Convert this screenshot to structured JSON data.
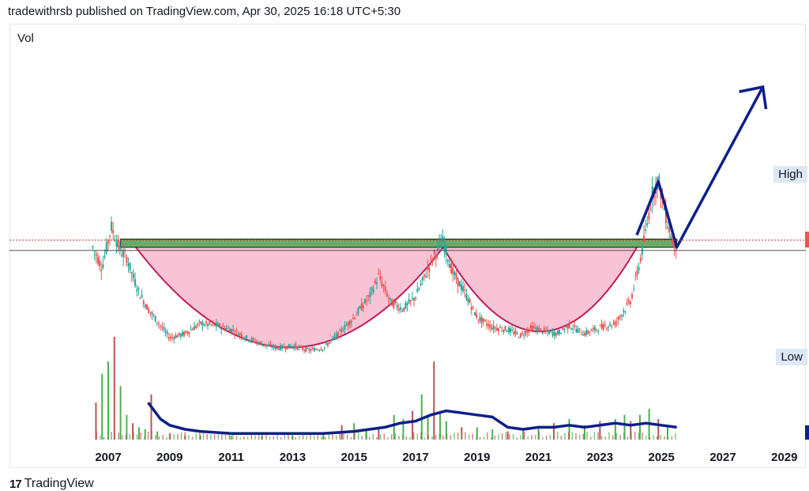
{
  "header": {
    "title": "tradewithrsb published on TradingView.com, Apr 30, 2025 16:18 UTC+5:30"
  },
  "footer": {
    "brand": "TradingView",
    "logo_icon": "tradingview-logo-icon"
  },
  "chart_data": {
    "type": "candlestick",
    "pane_label": "Vol",
    "x_ticks": [
      "2007",
      "2009",
      "2011",
      "2013",
      "2015",
      "2017",
      "2019",
      "2021",
      "2023",
      "2025",
      "2027",
      "2029"
    ],
    "markers": [
      {
        "label": "High",
        "placement": "right"
      },
      {
        "label": "Low",
        "placement": "right"
      }
    ],
    "price_path": [
      [
        2006.5,
        52
      ],
      [
        2006.8,
        42
      ],
      [
        2007.1,
        62
      ],
      [
        2007.4,
        50
      ],
      [
        2007.6,
        47
      ],
      [
        2007.8,
        38
      ],
      [
        2008.0,
        30
      ],
      [
        2008.3,
        22
      ],
      [
        2008.7,
        14
      ],
      [
        2009.0,
        8
      ],
      [
        2009.5,
        10
      ],
      [
        2010.0,
        15
      ],
      [
        2010.5,
        14
      ],
      [
        2011.0,
        12
      ],
      [
        2011.5,
        8
      ],
      [
        2012.0,
        5
      ],
      [
        2012.5,
        3
      ],
      [
        2013.0,
        4
      ],
      [
        2013.5,
        2
      ],
      [
        2014.0,
        3
      ],
      [
        2014.5,
        10
      ],
      [
        2015.0,
        18
      ],
      [
        2015.5,
        28
      ],
      [
        2015.8,
        38
      ],
      [
        2016.2,
        25
      ],
      [
        2016.6,
        22
      ],
      [
        2017.0,
        28
      ],
      [
        2017.3,
        38
      ],
      [
        2017.6,
        48
      ],
      [
        2017.9,
        55
      ],
      [
        2018.2,
        40
      ],
      [
        2018.6,
        30
      ],
      [
        2019.0,
        18
      ],
      [
        2019.5,
        13
      ],
      [
        2020.0,
        12
      ],
      [
        2020.4,
        9
      ],
      [
        2020.8,
        13
      ],
      [
        2021.2,
        11
      ],
      [
        2021.6,
        10
      ],
      [
        2022.0,
        14
      ],
      [
        2022.5,
        10
      ],
      [
        2023.0,
        13
      ],
      [
        2023.5,
        15
      ],
      [
        2024.0,
        26
      ],
      [
        2024.3,
        45
      ],
      [
        2024.5,
        60
      ],
      [
        2024.7,
        78
      ],
      [
        2024.9,
        85
      ],
      [
        2025.1,
        70
      ],
      [
        2025.3,
        58
      ],
      [
        2025.5,
        52
      ]
    ],
    "volume_bars": [
      [
        2006.6,
        18
      ],
      [
        2006.8,
        32
      ],
      [
        2007.0,
        38
      ],
      [
        2007.2,
        50
      ],
      [
        2007.4,
        26
      ],
      [
        2007.6,
        12
      ],
      [
        2007.8,
        8
      ],
      [
        2008.0,
        6
      ],
      [
        2008.2,
        5
      ],
      [
        2008.4,
        22
      ],
      [
        2008.6,
        4
      ],
      [
        2009.0,
        3
      ],
      [
        2009.5,
        2
      ],
      [
        2010.0,
        2
      ],
      [
        2011.0,
        2
      ],
      [
        2012.0,
        2
      ],
      [
        2013.0,
        2
      ],
      [
        2014.0,
        3
      ],
      [
        2014.6,
        7
      ],
      [
        2015.0,
        8
      ],
      [
        2015.4,
        5
      ],
      [
        2015.8,
        6
      ],
      [
        2016.3,
        12
      ],
      [
        2016.6,
        10
      ],
      [
        2016.9,
        14
      ],
      [
        2017.2,
        22
      ],
      [
        2017.4,
        12
      ],
      [
        2017.6,
        38
      ],
      [
        2017.8,
        14
      ],
      [
        2018.0,
        9
      ],
      [
        2018.5,
        6
      ],
      [
        2019.0,
        6
      ],
      [
        2019.5,
        5
      ],
      [
        2020.0,
        4
      ],
      [
        2020.5,
        5
      ],
      [
        2021.0,
        6
      ],
      [
        2021.5,
        8
      ],
      [
        2022.0,
        10
      ],
      [
        2022.5,
        7
      ],
      [
        2023.0,
        9
      ],
      [
        2023.5,
        10
      ],
      [
        2023.8,
        12
      ],
      [
        2024.0,
        9
      ],
      [
        2024.3,
        12
      ],
      [
        2024.6,
        15
      ],
      [
        2024.9,
        10
      ],
      [
        2025.2,
        6
      ]
    ],
    "volume_ma": [
      [
        2008.3,
        18
      ],
      [
        2008.7,
        10
      ],
      [
        2009.0,
        7
      ],
      [
        2009.5,
        5
      ],
      [
        2010.0,
        4
      ],
      [
        2011.0,
        3
      ],
      [
        2012.0,
        3
      ],
      [
        2013.0,
        3
      ],
      [
        2014.0,
        3
      ],
      [
        2015.0,
        4
      ],
      [
        2015.5,
        5
      ],
      [
        2016.0,
        6
      ],
      [
        2016.5,
        8
      ],
      [
        2017.0,
        9
      ],
      [
        2017.5,
        12
      ],
      [
        2018.0,
        14
      ],
      [
        2018.5,
        13
      ],
      [
        2019.0,
        12
      ],
      [
        2019.5,
        11
      ],
      [
        2020.0,
        6
      ],
      [
        2020.5,
        5
      ],
      [
        2021.0,
        6
      ],
      [
        2021.5,
        6
      ],
      [
        2022.0,
        7
      ],
      [
        2022.5,
        6
      ],
      [
        2023.0,
        7
      ],
      [
        2023.5,
        8
      ],
      [
        2024.0,
        7
      ],
      [
        2024.5,
        8
      ],
      [
        2025.0,
        7
      ],
      [
        2025.5,
        6
      ]
    ],
    "neckline": {
      "from_x": 2007.4,
      "to_x": 2025.5,
      "y_low": 52,
      "y_high": 56
    },
    "cups": [
      {
        "from_x": 2007.9,
        "to_x": 2017.9,
        "rim_y": 52,
        "bottom_y": 2
      },
      {
        "from_x": 2017.9,
        "to_x": 2024.2,
        "rim_y": 52,
        "bottom_y": 10
      }
    ],
    "projection_arrow": [
      [
        2024.2,
        58
      ],
      [
        2024.9,
        84
      ],
      [
        2025.5,
        52
      ],
      [
        2028.3,
        130
      ]
    ],
    "colors": {
      "up": "#26a69a",
      "down": "#ef5350",
      "volume_up": "#4caf50",
      "volume_down": "#b85450",
      "zone": "#6aab6a",
      "cup_fill": "#f8c3d5",
      "cup_stroke": "#c2185b",
      "arrow": "#0d1f8a",
      "volume_ma": "#0d1f8a"
    }
  }
}
